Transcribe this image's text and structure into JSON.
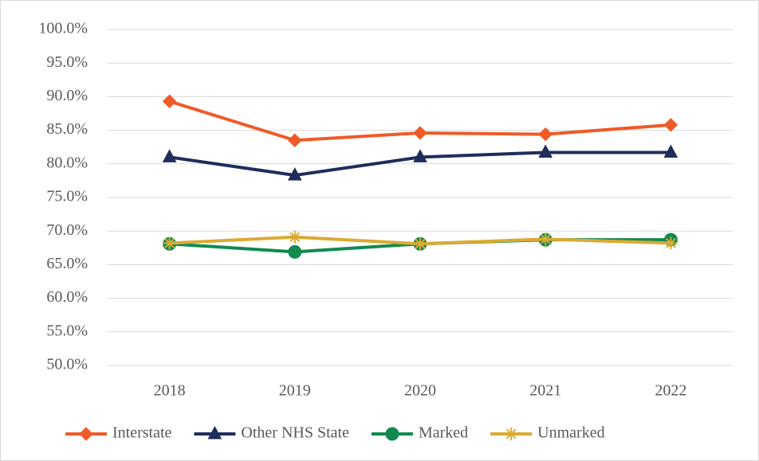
{
  "chart_data": {
    "type": "line",
    "categories": [
      "2018",
      "2019",
      "2020",
      "2021",
      "2022"
    ],
    "series": [
      {
        "name": "Interstate",
        "color": "#f05a28",
        "marker": "diamond",
        "values": [
          89.3,
          83.5,
          84.6,
          84.4,
          85.8
        ]
      },
      {
        "name": "Other NHS State",
        "color": "#1f2d5a",
        "marker": "triangle",
        "values": [
          81.0,
          78.3,
          81.0,
          81.7,
          81.7
        ]
      },
      {
        "name": "Marked",
        "color": "#118a4f",
        "marker": "circle",
        "values": [
          68.1,
          66.9,
          68.1,
          68.7,
          68.7
        ]
      },
      {
        "name": "Unmarked",
        "color": "#dbaa32",
        "marker": "star",
        "values": [
          68.2,
          69.1,
          68.1,
          68.8,
          68.2
        ]
      }
    ],
    "ylim": [
      50,
      100
    ],
    "yticks": [
      {
        "value": 50,
        "label": "50.0%"
      },
      {
        "value": 55,
        "label": "55.0%"
      },
      {
        "value": 60,
        "label": "60.0%"
      },
      {
        "value": 65,
        "label": "65.0%"
      },
      {
        "value": 70,
        "label": "70.0%"
      },
      {
        "value": 75,
        "label": "75.0%"
      },
      {
        "value": 80,
        "label": "80.0%"
      },
      {
        "value": 85,
        "label": "85.0%"
      },
      {
        "value": 90,
        "label": "90.0%"
      },
      {
        "value": 95,
        "label": "95.0%"
      },
      {
        "value": 100,
        "label": "100.0%"
      }
    ],
    "grid": true,
    "legend": "bottom"
  }
}
